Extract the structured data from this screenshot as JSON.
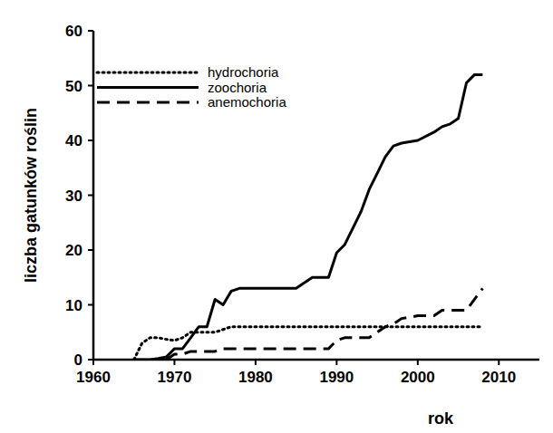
{
  "chart_data": {
    "type": "line",
    "x_label": "rok",
    "y_label": "liczba gatunków roślin",
    "x": [
      1965,
      1966,
      1967,
      1968,
      1969,
      1970,
      1971,
      1972,
      1973,
      1974,
      1975,
      1976,
      1977,
      1978,
      1980,
      1985,
      1987,
      1989,
      1990,
      1991,
      1992,
      1993,
      1994,
      1995,
      1996,
      1997,
      1998,
      2000,
      2002,
      2003,
      2004,
      2005,
      2006,
      2007,
      2008
    ],
    "series": [
      {
        "name": "hydrochoria",
        "color": "#000000",
        "line_style": "dotted",
        "values": [
          0,
          3,
          4,
          4,
          3.7,
          3.5,
          4,
          5,
          5,
          5,
          5,
          5.5,
          6,
          6,
          6,
          6,
          6,
          6,
          6,
          6,
          6,
          6,
          6,
          6,
          6,
          6,
          6,
          6,
          6,
          6,
          6,
          6,
          6,
          6,
          6
        ]
      },
      {
        "name": "zoochoria",
        "color": "#000000",
        "line_style": "solid",
        "values": [
          0,
          0,
          0,
          0.2,
          0.5,
          2,
          2,
          4,
          6,
          6,
          11,
          10,
          12.5,
          13,
          13,
          13,
          15,
          15,
          19.5,
          21,
          24,
          27,
          31,
          34,
          37,
          39,
          39.5,
          40,
          41.5,
          42.5,
          43,
          44,
          50.5,
          52,
          52
        ]
      },
      {
        "name": "anemochoria",
        "color": "#000000",
        "line_style": "dashed",
        "values": [
          null,
          null,
          null,
          null,
          0,
          1,
          1,
          1.5,
          1.5,
          1.5,
          1.5,
          2,
          2,
          2,
          2,
          2,
          2,
          2,
          3.5,
          4,
          4,
          4,
          4,
          5,
          6,
          6.5,
          7.5,
          8,
          8,
          9,
          9,
          9,
          9,
          11,
          13
        ]
      }
    ],
    "xlim": [
      1960,
      2015
    ],
    "ylim": [
      0,
      60
    ],
    "xticks": [
      1960,
      1970,
      1980,
      1990,
      2000,
      2010
    ],
    "yticks": [
      0,
      10,
      20,
      30,
      40,
      50,
      60
    ],
    "legend": "upper left",
    "grid": false
  }
}
